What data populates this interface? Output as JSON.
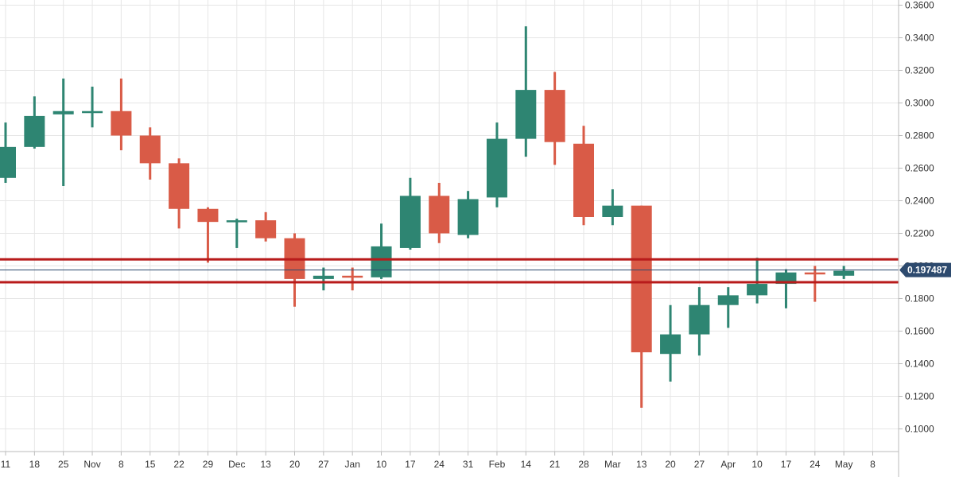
{
  "chart_data": {
    "type": "candlestick",
    "title": "",
    "xlabel": "",
    "ylabel": "",
    "ylim": [
      0.085,
      0.362
    ],
    "grid": true,
    "y_ticks": [
      "0.1000",
      "0.1200",
      "0.1400",
      "0.1600",
      "0.1800",
      "0.2000",
      "0.2200",
      "0.2400",
      "0.2600",
      "0.2800",
      "0.3000",
      "0.3200",
      "0.3400",
      "0.3600"
    ],
    "x_ticks": [
      "11",
      "18",
      "25",
      "Nov",
      "8",
      "15",
      "22",
      "29",
      "Dec",
      "13",
      "20",
      "27",
      "Jan",
      "10",
      "17",
      "24",
      "31",
      "Feb",
      "14",
      "21",
      "28",
      "Mar",
      "13",
      "20",
      "27",
      "Apr",
      "10",
      "17",
      "24",
      "May",
      "8"
    ],
    "candles": [
      {
        "open": 0.254,
        "high": 0.288,
        "low": 0.251,
        "close": 0.273
      },
      {
        "open": 0.273,
        "high": 0.304,
        "low": 0.272,
        "close": 0.292
      },
      {
        "open": 0.293,
        "high": 0.315,
        "low": 0.249,
        "close": 0.295
      },
      {
        "open": 0.295,
        "high": 0.31,
        "low": 0.285,
        "close": 0.295
      },
      {
        "open": 0.295,
        "high": 0.315,
        "low": 0.271,
        "close": 0.28
      },
      {
        "open": 0.28,
        "high": 0.285,
        "low": 0.253,
        "close": 0.263
      },
      {
        "open": 0.263,
        "high": 0.266,
        "low": 0.223,
        "close": 0.235
      },
      {
        "open": 0.235,
        "high": 0.236,
        "low": 0.202,
        "close": 0.227
      },
      {
        "open": 0.227,
        "high": 0.229,
        "low": 0.211,
        "close": 0.228
      },
      {
        "open": 0.228,
        "high": 0.233,
        "low": 0.215,
        "close": 0.217
      },
      {
        "open": 0.217,
        "high": 0.22,
        "low": 0.175,
        "close": 0.192
      },
      {
        "open": 0.192,
        "high": 0.199,
        "low": 0.185,
        "close": 0.194
      },
      {
        "open": 0.194,
        "high": 0.199,
        "low": 0.185,
        "close": 0.193
      },
      {
        "open": 0.193,
        "high": 0.226,
        "low": 0.192,
        "close": 0.212
      },
      {
        "open": 0.211,
        "high": 0.254,
        "low": 0.21,
        "close": 0.243
      },
      {
        "open": 0.243,
        "high": 0.251,
        "low": 0.214,
        "close": 0.22
      },
      {
        "open": 0.219,
        "high": 0.246,
        "low": 0.217,
        "close": 0.241
      },
      {
        "open": 0.242,
        "high": 0.288,
        "low": 0.236,
        "close": 0.278
      },
      {
        "open": 0.278,
        "high": 0.347,
        "low": 0.267,
        "close": 0.308
      },
      {
        "open": 0.308,
        "high": 0.319,
        "low": 0.262,
        "close": 0.276
      },
      {
        "open": 0.275,
        "high": 0.286,
        "low": 0.225,
        "close": 0.23
      },
      {
        "open": 0.23,
        "high": 0.247,
        "low": 0.225,
        "close": 0.237
      },
      {
        "open": 0.237,
        "high": 0.237,
        "low": 0.113,
        "close": 0.147
      },
      {
        "open": 0.146,
        "high": 0.176,
        "low": 0.129,
        "close": 0.158
      },
      {
        "open": 0.158,
        "high": 0.187,
        "low": 0.145,
        "close": 0.176
      },
      {
        "open": 0.176,
        "high": 0.187,
        "low": 0.162,
        "close": 0.182
      },
      {
        "open": 0.182,
        "high": 0.205,
        "low": 0.177,
        "close": 0.189
      },
      {
        "open": 0.189,
        "high": 0.198,
        "low": 0.174,
        "close": 0.196
      },
      {
        "open": 0.196,
        "high": 0.2,
        "low": 0.178,
        "close": 0.195
      },
      {
        "open": 0.194,
        "high": 0.2,
        "low": 0.192,
        "close": 0.197
      }
    ],
    "levels": [
      0.204,
      0.19
    ],
    "current_price": 0.1975,
    "current_price_label": "0.197487",
    "colors": {
      "up": "#2e8572",
      "down": "#d95b47",
      "level": "#b81b1b",
      "price_line": "#2d4a6e",
      "price_tag": "#2d4a6e",
      "grid": "#e6e6e6",
      "axis_text": "#333333"
    }
  }
}
